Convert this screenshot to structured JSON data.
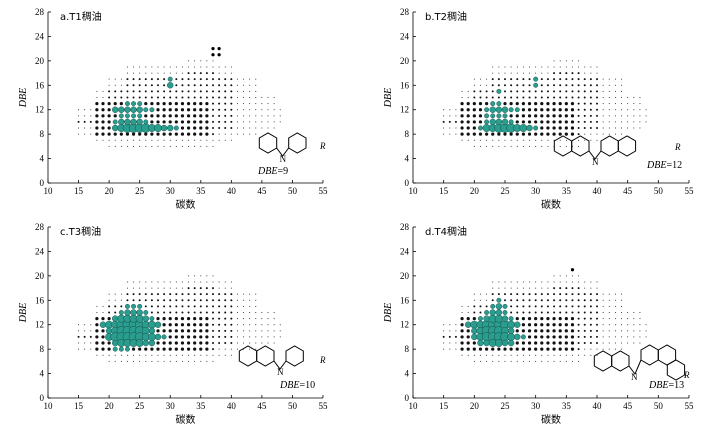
{
  "chart_data": [
    {
      "type": "scatter",
      "title": "a.T1稠油",
      "xlabel": "碳数",
      "ylabel": "DBE",
      "xlim": [
        10,
        55
      ],
      "ylim": [
        0,
        28
      ],
      "xticks": [
        "10",
        "15",
        "20",
        "25",
        "30",
        "35",
        "40",
        "45",
        "50",
        "55"
      ],
      "yticks": [
        "0",
        "4",
        "8",
        "12",
        "16",
        "20",
        "24",
        "28"
      ],
      "structure": "carbazole",
      "structure_label_italic": "DBE",
      "structure_label_value": "=9",
      "r_label": "R",
      "big_points": [
        [
          21,
          9,
          4
        ],
        [
          22,
          9,
          5
        ],
        [
          23,
          9,
          6
        ],
        [
          24,
          9,
          6
        ],
        [
          25,
          9,
          6
        ],
        [
          26,
          9,
          6
        ],
        [
          27,
          9,
          5
        ],
        [
          28,
          9,
          5
        ],
        [
          29,
          9,
          4
        ],
        [
          30,
          9,
          4
        ],
        [
          31,
          9,
          3
        ],
        [
          21,
          10,
          3
        ],
        [
          22,
          10,
          4
        ],
        [
          23,
          10,
          4
        ],
        [
          24,
          10,
          4
        ],
        [
          25,
          10,
          4
        ],
        [
          26,
          10,
          3
        ],
        [
          22,
          11,
          3
        ],
        [
          23,
          11,
          3
        ],
        [
          24,
          11,
          3
        ],
        [
          25,
          11,
          3
        ],
        [
          21,
          12,
          4
        ],
        [
          22,
          12,
          4
        ],
        [
          23,
          12,
          4
        ],
        [
          24,
          12,
          4
        ],
        [
          25,
          12,
          4
        ],
        [
          26,
          12,
          3
        ],
        [
          27,
          12,
          3
        ],
        [
          23,
          13,
          3
        ],
        [
          24,
          13,
          3
        ],
        [
          25,
          13,
          3
        ],
        [
          30,
          16,
          4
        ],
        [
          30,
          17,
          3
        ]
      ],
      "special_dark": [
        [
          37,
          22
        ],
        [
          38,
          22
        ],
        [
          37,
          21
        ],
        [
          38,
          21
        ]
      ]
    },
    {
      "type": "scatter",
      "title": "b.T2稠油",
      "xlabel": "碳数",
      "ylabel": "DBE",
      "xlim": [
        10,
        55
      ],
      "ylim": [
        0,
        28
      ],
      "xticks": [
        "10",
        "15",
        "20",
        "25",
        "30",
        "35",
        "40",
        "45",
        "50",
        "55"
      ],
      "yticks": [
        "0",
        "4",
        "8",
        "12",
        "16",
        "20",
        "24",
        "28"
      ],
      "structure": "benzocarbazole",
      "structure_label_italic": "DBE",
      "structure_label_value": "=12",
      "r_label": "R",
      "big_points": [
        [
          21,
          9,
          3
        ],
        [
          22,
          9,
          5
        ],
        [
          23,
          9,
          5
        ],
        [
          24,
          9,
          6
        ],
        [
          25,
          9,
          6
        ],
        [
          26,
          9,
          6
        ],
        [
          27,
          9,
          5
        ],
        [
          28,
          9,
          5
        ],
        [
          29,
          9,
          4
        ],
        [
          30,
          9,
          3
        ],
        [
          22,
          10,
          3
        ],
        [
          23,
          10,
          4
        ],
        [
          24,
          10,
          4
        ],
        [
          25,
          10,
          4
        ],
        [
          26,
          10,
          3
        ],
        [
          22,
          11,
          3
        ],
        [
          23,
          11,
          3
        ],
        [
          24,
          11,
          3
        ],
        [
          25,
          11,
          3
        ],
        [
          22,
          12,
          3
        ],
        [
          23,
          12,
          4
        ],
        [
          24,
          12,
          4
        ],
        [
          25,
          12,
          4
        ],
        [
          26,
          12,
          3
        ],
        [
          27,
          12,
          3
        ],
        [
          23,
          13,
          3
        ],
        [
          24,
          13,
          3
        ],
        [
          24,
          15,
          3
        ],
        [
          30,
          16,
          3
        ],
        [
          30,
          17,
          3
        ]
      ],
      "special_dark": []
    },
    {
      "type": "scatter",
      "title": "c.T3稠油",
      "xlabel": "碳数",
      "ylabel": "DBE",
      "xlim": [
        10,
        55
      ],
      "ylim": [
        0,
        28
      ],
      "xticks": [
        "10",
        "15",
        "20",
        "25",
        "30",
        "35",
        "40",
        "45",
        "50",
        "55"
      ],
      "yticks": [
        "0",
        "4",
        "8",
        "12",
        "16",
        "20",
        "24",
        "28"
      ],
      "structure": "tetrahydrobenzocarbazole",
      "structure_label_italic": "DBE",
      "structure_label_value": "=10",
      "r_label": "R",
      "big_points": [
        [
          19,
          12,
          4
        ],
        [
          20,
          12,
          5
        ],
        [
          21,
          12,
          5
        ],
        [
          22,
          12,
          6
        ],
        [
          23,
          12,
          6
        ],
        [
          24,
          12,
          6
        ],
        [
          25,
          12,
          6
        ],
        [
          26,
          12,
          5
        ],
        [
          27,
          12,
          5
        ],
        [
          28,
          12,
          4
        ],
        [
          20,
          11,
          4
        ],
        [
          21,
          11,
          5
        ],
        [
          22,
          11,
          6
        ],
        [
          23,
          11,
          6
        ],
        [
          24,
          11,
          6
        ],
        [
          25,
          11,
          6
        ],
        [
          26,
          11,
          5
        ],
        [
          27,
          11,
          4
        ],
        [
          20,
          10,
          5
        ],
        [
          21,
          10,
          6
        ],
        [
          22,
          10,
          6
        ],
        [
          23,
          10,
          6
        ],
        [
          24,
          10,
          6
        ],
        [
          25,
          10,
          6
        ],
        [
          26,
          10,
          5
        ],
        [
          27,
          10,
          5
        ],
        [
          28,
          10,
          4
        ],
        [
          29,
          10,
          3
        ],
        [
          21,
          9,
          4
        ],
        [
          22,
          9,
          5
        ],
        [
          23,
          9,
          5
        ],
        [
          24,
          9,
          5
        ],
        [
          25,
          9,
          5
        ],
        [
          26,
          9,
          4
        ],
        [
          27,
          9,
          4
        ],
        [
          21,
          13,
          4
        ],
        [
          22,
          13,
          5
        ],
        [
          23,
          13,
          5
        ],
        [
          24,
          13,
          5
        ],
        [
          25,
          13,
          5
        ],
        [
          26,
          13,
          4
        ],
        [
          27,
          13,
          3
        ],
        [
          22,
          14,
          3
        ],
        [
          23,
          14,
          4
        ],
        [
          24,
          14,
          4
        ],
        [
          25,
          14,
          4
        ],
        [
          26,
          14,
          3
        ],
        [
          23,
          15,
          3
        ],
        [
          24,
          15,
          3
        ],
        [
          25,
          15,
          3
        ],
        [
          21,
          8,
          3
        ],
        [
          22,
          8,
          3
        ],
        [
          23,
          8,
          3
        ]
      ],
      "special_dark": []
    },
    {
      "type": "scatter",
      "title": "d.T4稠油",
      "xlabel": "碳数",
      "ylabel": "DBE",
      "xlim": [
        10,
        55
      ],
      "ylim": [
        0,
        28
      ],
      "xticks": [
        "10",
        "15",
        "20",
        "25",
        "30",
        "35",
        "40",
        "45",
        "50",
        "55"
      ],
      "yticks": [
        "0",
        "4",
        "8",
        "12",
        "16",
        "20",
        "24",
        "28"
      ],
      "structure": "dibenzocarbazole-tetrahydro",
      "structure_label_italic": "DBE",
      "structure_label_value": "=13",
      "r_label": "R",
      "big_points": [
        [
          19,
          12,
          4
        ],
        [
          20,
          12,
          5
        ],
        [
          21,
          12,
          5
        ],
        [
          22,
          12,
          6
        ],
        [
          23,
          12,
          6
        ],
        [
          24,
          12,
          6
        ],
        [
          25,
          12,
          6
        ],
        [
          26,
          12,
          5
        ],
        [
          27,
          12,
          4
        ],
        [
          20,
          11,
          4
        ],
        [
          21,
          11,
          5
        ],
        [
          22,
          11,
          6
        ],
        [
          23,
          11,
          6
        ],
        [
          24,
          11,
          6
        ],
        [
          25,
          11,
          5
        ],
        [
          26,
          11,
          4
        ],
        [
          20,
          10,
          4
        ],
        [
          21,
          10,
          5
        ],
        [
          22,
          10,
          6
        ],
        [
          23,
          10,
          6
        ],
        [
          24,
          10,
          6
        ],
        [
          25,
          10,
          6
        ],
        [
          26,
          10,
          5
        ],
        [
          27,
          10,
          4
        ],
        [
          28,
          10,
          3
        ],
        [
          21,
          9,
          4
        ],
        [
          22,
          9,
          4
        ],
        [
          23,
          9,
          5
        ],
        [
          24,
          9,
          5
        ],
        [
          25,
          9,
          4
        ],
        [
          26,
          9,
          4
        ],
        [
          21,
          13,
          3
        ],
        [
          22,
          13,
          4
        ],
        [
          23,
          13,
          5
        ],
        [
          24,
          13,
          5
        ],
        [
          25,
          13,
          4
        ],
        [
          26,
          13,
          3
        ],
        [
          22,
          14,
          3
        ],
        [
          23,
          14,
          4
        ],
        [
          24,
          14,
          4
        ],
        [
          25,
          14,
          3
        ],
        [
          23,
          15,
          3
        ],
        [
          24,
          15,
          4
        ],
        [
          25,
          15,
          3
        ],
        [
          24,
          16,
          3
        ]
      ],
      "special_dark": [
        [
          36,
          21
        ]
      ]
    }
  ]
}
